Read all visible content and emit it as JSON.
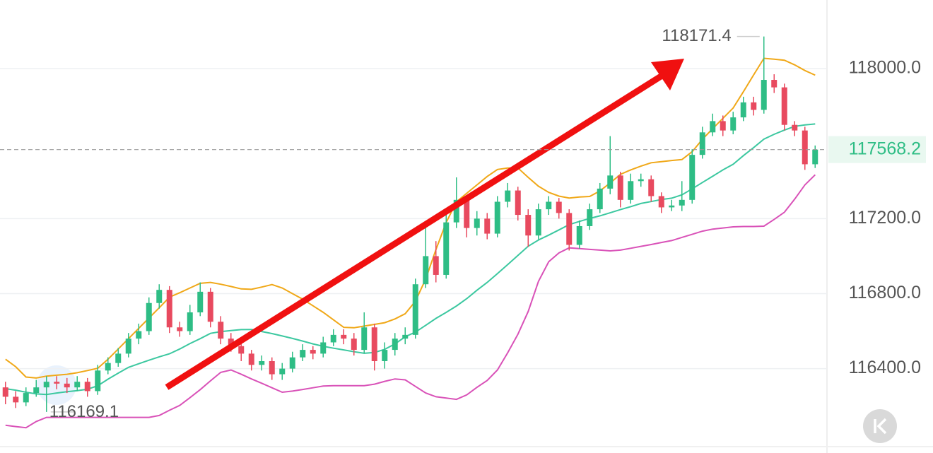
{
  "chart_data": {
    "type": "candlestick",
    "open": [
      116300,
      116250,
      116220,
      116270,
      116300,
      116330,
      116320,
      116300,
      116330,
      116280,
      116390,
      116430,
      116480,
      116560,
      116600,
      116750,
      116820,
      116620,
      116600,
      116700,
      116810,
      116650,
      116560,
      116520,
      116480,
      116420,
      116440,
      116370,
      116400,
      116460,
      116500,
      116480,
      116540,
      116580,
      116560,
      116500,
      116620,
      116440,
      116500,
      116560,
      116580,
      116850,
      117000,
      116900,
      117180,
      117300,
      117150,
      117200,
      117120,
      117290,
      117350,
      117220,
      117110,
      117250,
      117290,
      117230,
      117060,
      117160,
      117250,
      117360,
      117430,
      117300,
      117400,
      117410,
      117320,
      117260,
      117270,
      117300,
      117540,
      117660,
      117720,
      117670,
      117740,
      117820,
      117780,
      117940,
      117900,
      117700,
      117670,
      117490
    ],
    "high": [
      116330,
      116280,
      116300,
      116340,
      116360,
      116360,
      116350,
      116360,
      116350,
      116420,
      116460,
      116510,
      116590,
      116640,
      116780,
      116850,
      116840,
      116650,
      116740,
      116860,
      116830,
      116680,
      116590,
      116550,
      116500,
      116470,
      116460,
      116430,
      116490,
      116530,
      116520,
      116570,
      116610,
      116610,
      116590,
      116700,
      116640,
      116540,
      116590,
      116620,
      116880,
      117170,
      117080,
      117220,
      117420,
      117320,
      117240,
      117230,
      117320,
      117390,
      117370,
      117250,
      117280,
      117320,
      117310,
      117250,
      117190,
      117280,
      117390,
      117640,
      117450,
      117440,
      117440,
      117430,
      117340,
      117300,
      117400,
      117570,
      117690,
      117760,
      117750,
      117770,
      117850,
      117850,
      118171.4,
      117970,
      117920,
      117720,
      117690,
      117590
    ],
    "low": [
      116210,
      116190,
      116200,
      116250,
      116169.1,
      116290,
      116270,
      116280,
      116250,
      116260,
      116370,
      116410,
      116460,
      116530,
      116580,
      116720,
      116590,
      116570,
      116580,
      116680,
      116620,
      116530,
      116490,
      116440,
      116390,
      116390,
      116340,
      116340,
      116380,
      116440,
      116450,
      116460,
      116520,
      116530,
      116470,
      116480,
      116390,
      116400,
      116470,
      116530,
      116560,
      116830,
      116860,
      116880,
      117150,
      117100,
      117110,
      117090,
      117100,
      117260,
      117190,
      117050,
      117090,
      117220,
      117200,
      117030,
      117040,
      117140,
      117230,
      117330,
      117260,
      117280,
      117370,
      117290,
      117230,
      117240,
      117240,
      117280,
      117520,
      117640,
      117640,
      117650,
      117720,
      117750,
      117760,
      117870,
      117670,
      117640,
      117460,
      117470
    ],
    "close": [
      116250,
      116220,
      116270,
      116300,
      116330,
      116320,
      116300,
      116330,
      116280,
      116390,
      116430,
      116480,
      116560,
      116600,
      116750,
      116820,
      116620,
      116600,
      116700,
      116810,
      116650,
      116560,
      116520,
      116480,
      116420,
      116440,
      116370,
      116400,
      116460,
      116500,
      116480,
      116540,
      116580,
      116560,
      116500,
      116620,
      116440,
      116500,
      116560,
      116580,
      116850,
      117000,
      116900,
      117180,
      117300,
      117150,
      117200,
      117120,
      117290,
      117350,
      117220,
      117110,
      117250,
      117290,
      117230,
      117060,
      117160,
      117250,
      117360,
      117430,
      117300,
      117400,
      117410,
      117320,
      117260,
      117270,
      117300,
      117540,
      117660,
      117720,
      117670,
      117740,
      117820,
      117780,
      117940,
      117900,
      117700,
      117670,
      117490,
      117568.2
    ],
    "up_color": "#2ebd85",
    "down_color": "#e84a5f",
    "bands": [
      {
        "color": "#f0a818",
        "values": [
          116450,
          116410,
          116355,
          116350,
          116360,
          116365,
          116370,
          116378,
          116390,
          116402,
          116450,
          116505,
          116560,
          116615,
          116670,
          116725,
          116781,
          116805,
          116830,
          116855,
          116860,
          116850,
          116838,
          116825,
          116823,
          116835,
          116848,
          116830,
          116800,
          116770,
          116735,
          116700,
          116660,
          116620,
          116618,
          116627,
          116636,
          116645,
          116665,
          116693,
          116760,
          116878,
          117035,
          117180,
          117290,
          117335,
          117380,
          117425,
          117462,
          117470,
          117470,
          117420,
          117373,
          117340,
          117320,
          117310,
          117315,
          117318,
          117348,
          117390,
          117436,
          117460,
          117480,
          117498,
          117504,
          117510,
          117515,
          117557,
          117623,
          117680,
          117735,
          117790,
          117877,
          117967,
          118055,
          118050,
          118045,
          118020,
          117990,
          117965
        ]
      },
      {
        "color": "#3cc8a0",
        "values": [
          116293,
          116285,
          116274,
          116265,
          116262,
          116270,
          116277,
          116283,
          116290,
          116309,
          116344,
          116376,
          116407,
          116426,
          116445,
          116463,
          116479,
          116505,
          116534,
          116560,
          116588,
          116597,
          116603,
          116608,
          116609,
          116598,
          116587,
          116574,
          116561,
          116547,
          116532,
          116519,
          116509,
          116500,
          116490,
          116482,
          116486,
          116503,
          116532,
          116570,
          116595,
          116631,
          116668,
          116700,
          116734,
          116773,
          116818,
          116860,
          116907,
          116955,
          117004,
          117053,
          117086,
          117112,
          117140,
          117168,
          117185,
          117201,
          117215,
          117231,
          117248,
          117264,
          117281,
          117291,
          117302,
          117309,
          117327,
          117359,
          117393,
          117426,
          117460,
          117490,
          117536,
          117579,
          117624,
          117650,
          117672,
          117692,
          117700,
          117705
        ]
      },
      {
        "color": "#d952b8",
        "values": [
          116098,
          116091,
          116085,
          116118,
          116140,
          116140,
          116140,
          116140,
          116140,
          116140,
          116140,
          116140,
          116140,
          116140,
          116140,
          116150,
          116178,
          116204,
          116245,
          116288,
          116335,
          116380,
          116393,
          116370,
          116345,
          116322,
          116298,
          116274,
          116280,
          116289,
          116298,
          116307,
          116309,
          116309,
          116309,
          116309,
          116317,
          116332,
          116345,
          116340,
          116305,
          116270,
          116250,
          116243,
          116236,
          116260,
          116300,
          116337,
          116393,
          116485,
          116584,
          116705,
          116865,
          116970,
          117017,
          117044,
          117040,
          117036,
          117032,
          117028,
          117032,
          117042,
          117052,
          117062,
          117073,
          117083,
          117100,
          117116,
          117133,
          117144,
          117150,
          117156,
          117158,
          117158,
          117160,
          117196,
          117234,
          117304,
          117380,
          117434
        ]
      }
    ],
    "ylim": [
      115950,
      118366
    ],
    "yticks": [
      {
        "value": 118000,
        "label": "118000.0"
      },
      {
        "value": 117200,
        "label": "117200.0"
      },
      {
        "value": 116800,
        "label": "116800.0"
      },
      {
        "value": 116400,
        "label": "116400.0"
      }
    ],
    "grid": true,
    "last_price_bg": "#e9f8f0"
  }
}
